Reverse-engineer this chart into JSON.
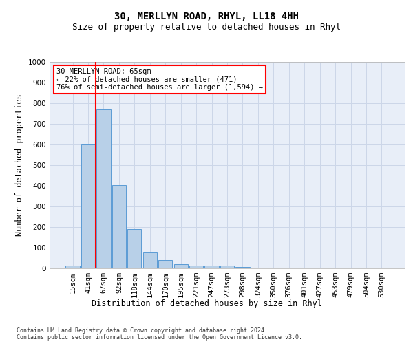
{
  "title1": "30, MERLLYN ROAD, RHYL, LL18 4HH",
  "title2": "Size of property relative to detached houses in Rhyl",
  "xlabel": "Distribution of detached houses by size in Rhyl",
  "ylabel": "Number of detached properties",
  "categories": [
    "15sqm",
    "41sqm",
    "67sqm",
    "92sqm",
    "118sqm",
    "144sqm",
    "170sqm",
    "195sqm",
    "221sqm",
    "247sqm",
    "273sqm",
    "298sqm",
    "324sqm",
    "350sqm",
    "376sqm",
    "401sqm",
    "427sqm",
    "453sqm",
    "479sqm",
    "504sqm",
    "530sqm"
  ],
  "bar_values": [
    15,
    600,
    770,
    405,
    190,
    78,
    40,
    20,
    15,
    12,
    15,
    8,
    0,
    0,
    0,
    0,
    0,
    0,
    0,
    0,
    0
  ],
  "bar_color": "#b8d0e8",
  "bar_edgecolor": "#5b9bd5",
  "vline_x": 1.5,
  "vline_color": "red",
  "annotation_text": "30 MERLLYN ROAD: 65sqm\n← 22% of detached houses are smaller (471)\n76% of semi-detached houses are larger (1,594) →",
  "annotation_box_color": "white",
  "annotation_box_edgecolor": "red",
  "ylim": [
    0,
    1000
  ],
  "yticks": [
    0,
    100,
    200,
    300,
    400,
    500,
    600,
    700,
    800,
    900,
    1000
  ],
  "grid_color": "#ccd6e8",
  "background_color": "#e8eef8",
  "footnote": "Contains HM Land Registry data © Crown copyright and database right 2024.\nContains public sector information licensed under the Open Government Licence v3.0.",
  "title1_fontsize": 10,
  "title2_fontsize": 9,
  "xlabel_fontsize": 8.5,
  "ylabel_fontsize": 8.5,
  "tick_fontsize": 7.5,
  "annot_fontsize": 7.5,
  "footnote_fontsize": 6
}
